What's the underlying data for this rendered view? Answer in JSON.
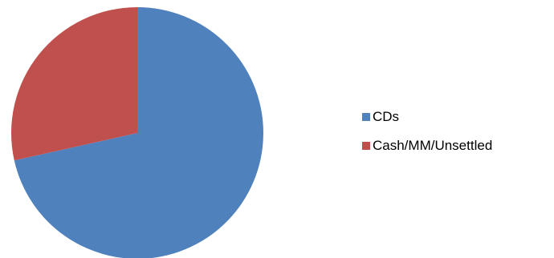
{
  "chart_data": {
    "type": "pie",
    "title": "",
    "legend_position": "right",
    "start_angle_deg": 0,
    "direction": "clockwise",
    "slices": [
      {
        "label": "CDs",
        "value": 71.5,
        "color": "#4F81BD"
      },
      {
        "label": "Cash/MM/Unsettled",
        "value": 28.5,
        "color": "#C0504D"
      }
    ]
  }
}
